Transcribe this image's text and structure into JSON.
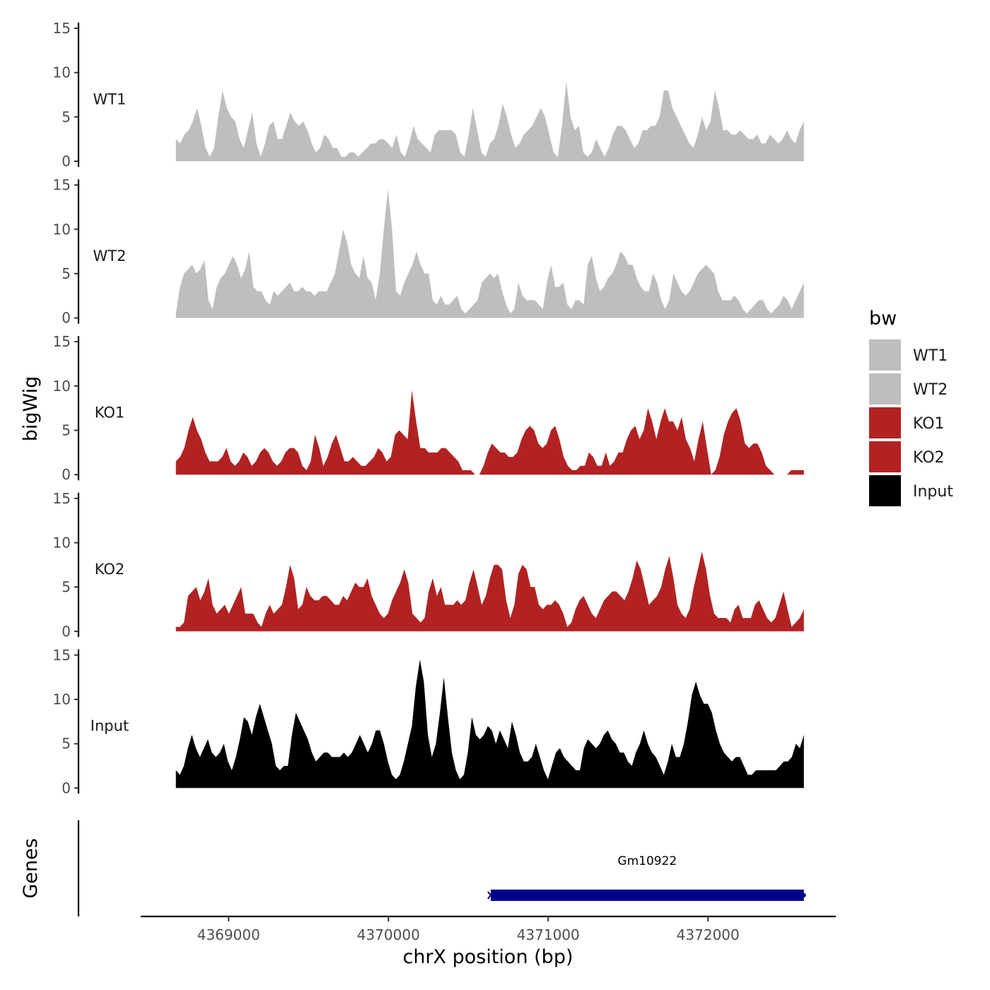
{
  "chart_data": {
    "type": "area",
    "xlabel": "chrX position (bp)",
    "ylabel": "bigWig",
    "genes_label": "Genes",
    "xlim": [
      4368450,
      4372800
    ],
    "x_range": [
      4368670,
      4372600
    ],
    "ylim": [
      0,
      15
    ],
    "x_ticks": [
      4369000,
      4370000,
      4371000,
      4372000
    ],
    "x_tick_labels": [
      "4369000",
      "4370000",
      "4371000",
      "4372000"
    ],
    "y_ticks": [
      0,
      5,
      10,
      15
    ],
    "y_tick_labels": [
      "0",
      "5",
      "10",
      "15"
    ],
    "legend": {
      "title": "bw",
      "entries": [
        {
          "label": "WT1",
          "color": "#bebebe"
        },
        {
          "label": "WT2",
          "color": "#bebebe"
        },
        {
          "label": "KO1",
          "color": "#b22222"
        },
        {
          "label": "KO2",
          "color": "#b22222"
        },
        {
          "label": "Input",
          "color": "#000000"
        }
      ]
    },
    "series": [
      {
        "name": "WT1",
        "color": "#bebebe",
        "values": [
          2.5,
          2,
          3,
          3.5,
          4.5,
          6,
          4,
          1.5,
          0.5,
          1.5,
          5,
          8,
          6,
          5,
          4.5,
          2.5,
          1.5,
          3.5,
          5.5,
          2,
          0.5,
          2,
          4,
          4.5,
          2.5,
          2.5,
          4,
          5.5,
          4.5,
          4,
          4.5,
          3.5,
          2,
          1,
          1.5,
          3,
          2.5,
          1.5,
          1.5,
          0.5,
          0.5,
          1,
          1,
          0.5,
          1,
          1.5,
          2,
          2,
          2.5,
          2.5,
          2,
          1.5,
          3,
          1,
          0.5,
          2,
          4,
          2.5,
          2,
          1.5,
          1,
          3,
          3.5,
          3.5,
          3.5,
          3.5,
          3,
          1,
          0.5,
          3,
          6,
          3.5,
          1,
          0.5,
          2,
          2.5,
          4,
          6.5,
          5,
          3,
          1.5,
          2,
          3,
          3.5,
          4,
          5,
          6,
          5,
          3,
          1,
          0.5,
          4,
          9,
          5,
          3.5,
          4,
          1,
          0.5,
          1,
          2.5,
          1.5,
          0.5,
          1.5,
          3,
          4,
          4,
          3.5,
          2.5,
          1.5,
          2,
          3.5,
          3.5,
          4,
          4,
          5,
          8,
          8,
          6,
          5,
          4,
          3,
          2,
          1.5,
          3,
          5,
          3.5,
          4.5,
          8,
          6,
          3.5,
          3.5,
          3,
          3,
          3.5,
          3,
          2.5,
          2.5,
          3,
          2,
          2,
          3,
          2.5,
          2,
          2.5,
          3.5,
          2.5,
          2,
          3.5,
          4.5
        ]
      },
      {
        "name": "WT2",
        "color": "#bebebe",
        "values": [
          0.5,
          3.5,
          5,
          5.5,
          6,
          5,
          5.5,
          6.5,
          2,
          1,
          3.5,
          4.5,
          5,
          6,
          7,
          6,
          4.5,
          5.5,
          7.5,
          3.5,
          3,
          3,
          2,
          1.5,
          3,
          2.5,
          3,
          3.5,
          4,
          3,
          3,
          3.5,
          3,
          3,
          2.5,
          3,
          3,
          3,
          4,
          5,
          7.5,
          10,
          8.5,
          6,
          5,
          4.5,
          7,
          4.5,
          4,
          2,
          5,
          10,
          14.5,
          10,
          3,
          2.5,
          4,
          5,
          6,
          7.5,
          6,
          5,
          5,
          2,
          1.5,
          2.5,
          1.5,
          1.5,
          2,
          2.5,
          1,
          0.5,
          1,
          1.5,
          2,
          4,
          4.5,
          5,
          4.5,
          5,
          3,
          1.5,
          0.5,
          1,
          4,
          2.5,
          2,
          2,
          2,
          1.5,
          1,
          4,
          6,
          3.5,
          3.5,
          4,
          1.5,
          1,
          2,
          2,
          1.5,
          6,
          7,
          4.5,
          3,
          3.5,
          4.5,
          5,
          6,
          7.5,
          7,
          6,
          6,
          4.5,
          3.5,
          3,
          3,
          5,
          4,
          2,
          1,
          2,
          5,
          4,
          3,
          2.5,
          3,
          4,
          5,
          5.5,
          6,
          5.5,
          5,
          3,
          2,
          2,
          2,
          2.5,
          2,
          1,
          0.5,
          1,
          1.5,
          2,
          2,
          1,
          0.5,
          1,
          1.5,
          2.5,
          2,
          1,
          2,
          3,
          4
        ]
      },
      {
        "name": "KO1",
        "color": "#b22222",
        "values": [
          1.5,
          2,
          3,
          5,
          6.5,
          5,
          4,
          2.5,
          1.5,
          1.5,
          1.5,
          2,
          3,
          1.5,
          1,
          1.5,
          2.5,
          2,
          1,
          1.5,
          2.5,
          3,
          2.5,
          1.5,
          1,
          1.5,
          2.5,
          3,
          3,
          2.5,
          1,
          0.5,
          1.5,
          4.5,
          3,
          1,
          2,
          3.5,
          4.5,
          3,
          1.5,
          1.5,
          2,
          1.5,
          1,
          1,
          1.5,
          2,
          3,
          2.5,
          1.5,
          2,
          4.5,
          5,
          4.5,
          4,
          9.5,
          6,
          3,
          3,
          2.5,
          2.5,
          2.5,
          3,
          3,
          2.5,
          2,
          1.5,
          0.5,
          0.5,
          0.5,
          0,
          0,
          1,
          2.5,
          3.5,
          3,
          2.5,
          2.5,
          2,
          2,
          2.5,
          4,
          5,
          5.5,
          5,
          3.5,
          3,
          3.5,
          5,
          5.5,
          4,
          2,
          1,
          0.5,
          0.5,
          1,
          1,
          2.5,
          2,
          1,
          1,
          2.5,
          1,
          1.5,
          2.5,
          2.5,
          4,
          5,
          5.5,
          4,
          5,
          7.5,
          6,
          4,
          6,
          7.5,
          6,
          6,
          5,
          6.5,
          4,
          3,
          1.5,
          4,
          6,
          3,
          0,
          0.5,
          2,
          4.5,
          6,
          7,
          7.5,
          6,
          3.5,
          3,
          3.5,
          3.5,
          2.5,
          1,
          0.5,
          0,
          0,
          0,
          0,
          0.5,
          0.5,
          0.5,
          0.5
        ]
      },
      {
        "name": "KO2",
        "color": "#b22222",
        "values": [
          0.5,
          0.5,
          1,
          4,
          4.5,
          5,
          3.5,
          4.5,
          6,
          3,
          2,
          2.5,
          3,
          2,
          3,
          4,
          5,
          2,
          2,
          2,
          1,
          0.5,
          2,
          3,
          2,
          2.5,
          3,
          5,
          7.5,
          6,
          2.5,
          3,
          5,
          4,
          3.5,
          3.5,
          4,
          4,
          3.5,
          3,
          3,
          4,
          3.5,
          4.5,
          5.5,
          5,
          5,
          6,
          4,
          3,
          2,
          1.5,
          2,
          3.5,
          4.5,
          5.5,
          7,
          5.5,
          2,
          1.5,
          1,
          1.5,
          4.5,
          6,
          4,
          5,
          3,
          3,
          3,
          3.5,
          3,
          3.5,
          5.5,
          7,
          5,
          3,
          4,
          6,
          7.5,
          7.5,
          7,
          3.5,
          1.5,
          3,
          6.5,
          7.5,
          7,
          5,
          5,
          3,
          2.5,
          3,
          3,
          3.5,
          3,
          2,
          0.5,
          1,
          2.5,
          3.5,
          4,
          3,
          2,
          1.5,
          2.5,
          3.5,
          4,
          4.5,
          4.5,
          4,
          3.5,
          4.5,
          6,
          8,
          7,
          5,
          3,
          3.5,
          4,
          5,
          7,
          8.5,
          6,
          3,
          2,
          1.5,
          2.5,
          5,
          7,
          9,
          7,
          4,
          2,
          1.5,
          1.5,
          1.5,
          1,
          2.5,
          3,
          1.5,
          1.5,
          1.5,
          3,
          3.5,
          2.5,
          1.5,
          1,
          1.5,
          3,
          4.5,
          2.5,
          0.5,
          1,
          1.5,
          2.5
        ]
      },
      {
        "name": "Input",
        "color": "#000000",
        "values": [
          2,
          1.5,
          2.5,
          4.5,
          6,
          4.5,
          3.5,
          4.5,
          5.5,
          4,
          3.5,
          4,
          5,
          3,
          2,
          3.5,
          5.5,
          8,
          7.5,
          6,
          8,
          9.5,
          8,
          6.5,
          5,
          2.5,
          2,
          2.5,
          2.5,
          6,
          8.5,
          7.5,
          6.5,
          5.5,
          4,
          3,
          3.5,
          4,
          4,
          3.5,
          3.5,
          3.5,
          4,
          3.5,
          4,
          5,
          6,
          5,
          4,
          5,
          6.5,
          6.5,
          5,
          3,
          1.5,
          1,
          1.5,
          3,
          5,
          7,
          11.5,
          14.5,
          12,
          6,
          3.5,
          5,
          8.5,
          12.5,
          8,
          4,
          2,
          1,
          1.5,
          4,
          8,
          6,
          5.5,
          6,
          7,
          6.5,
          5,
          6.5,
          5.5,
          4.5,
          7.5,
          6,
          4,
          3,
          3,
          3.5,
          5,
          3.5,
          2,
          1,
          2.5,
          4,
          4.5,
          3.5,
          3,
          2.5,
          2,
          2,
          4.5,
          5.5,
          5,
          4.5,
          5,
          6,
          6.5,
          5.5,
          5,
          4,
          4,
          3,
          2.5,
          4,
          5,
          6.5,
          5,
          4,
          3.5,
          2.5,
          1.5,
          3,
          5,
          3.5,
          3.5,
          5,
          7.5,
          10.5,
          12,
          10.5,
          9.5,
          9.5,
          8.5,
          6.5,
          5,
          4,
          3.5,
          3,
          3.5,
          3.5,
          2.5,
          1.5,
          1.5,
          2,
          2,
          2,
          2,
          2,
          2,
          2.5,
          3,
          3,
          3.5,
          5,
          4.5,
          6
        ]
      }
    ],
    "genes": [
      {
        "name": "Gm10922",
        "start": 4370640,
        "end": 4372600,
        "strand": "+",
        "color": "#00008b"
      }
    ]
  }
}
